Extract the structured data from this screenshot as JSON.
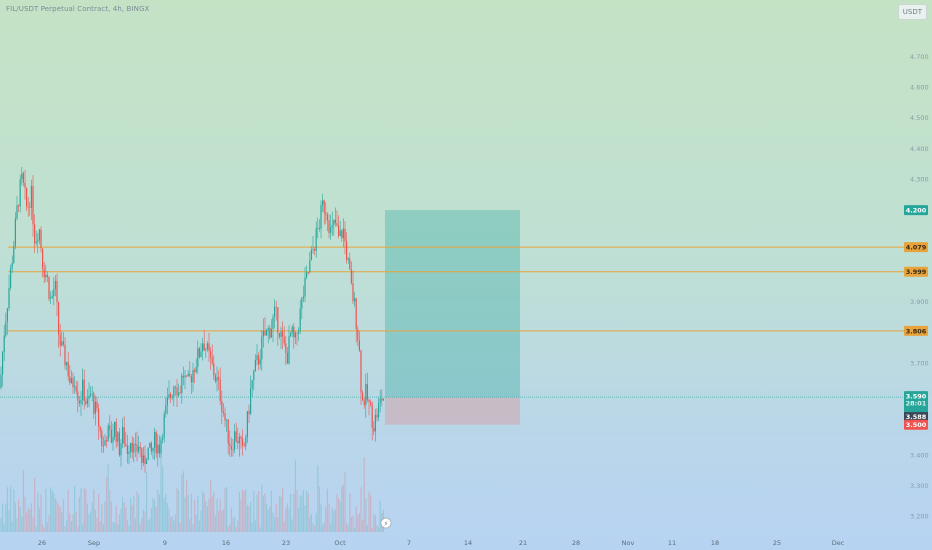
{
  "header": {
    "title": "FIL/USDT Perpetual Contract, 4h, BINGX",
    "currency": "USDT"
  },
  "colors": {
    "up": "#26a69a",
    "down": "#ef5350",
    "level": "#e8a33d",
    "profit": "#26a69a",
    "loss": "#e57373"
  },
  "chart_data": {
    "type": "candlestick",
    "y_axis": {
      "min": 3.15,
      "max": 4.82,
      "ticks": [
        "4.700",
        "4.600",
        "4.500",
        "4.400",
        "4.300",
        "4.200",
        "4.079",
        "3.999",
        "3.900",
        "3.806",
        "3.700",
        "3.590",
        "3.588",
        "3.500",
        "3.400",
        "3.300",
        "3.200"
      ]
    },
    "x_axis": {
      "labels": [
        "26",
        "Sep",
        "9",
        "16",
        "23",
        "Oct",
        "7",
        "14",
        "21",
        "28",
        "Nov",
        "11",
        "18",
        "25",
        "Dec"
      ]
    },
    "price_levels": [
      {
        "label": "4.079",
        "value": 4.079
      },
      {
        "label": "3.999",
        "value": 3.999
      },
      {
        "label": "3.806",
        "value": 3.806
      }
    ],
    "position": {
      "type": "long",
      "entry": 3.59,
      "target": 4.2,
      "stop": 3.5,
      "entry_label": "3.590",
      "countdown": "28:01",
      "current_label": "3.588",
      "target_label": "4.200",
      "stop_label": "3.500"
    },
    "close_path": [
      [
        0,
        3.62
      ],
      [
        4,
        3.8
      ],
      [
        9,
        3.95
      ],
      [
        14,
        4.1
      ],
      [
        18,
        4.23
      ],
      [
        22,
        4.3
      ],
      [
        27,
        4.2
      ],
      [
        31,
        4.26
      ],
      [
        35,
        4.1
      ],
      [
        39,
        4.15
      ],
      [
        43,
        4.02
      ],
      [
        47,
        3.98
      ],
      [
        51,
        3.9
      ],
      [
        55,
        3.96
      ],
      [
        59,
        3.78
      ],
      [
        63,
        3.73
      ],
      [
        67,
        3.7
      ],
      [
        71,
        3.62
      ],
      [
        75,
        3.66
      ],
      [
        79,
        3.58
      ],
      [
        83,
        3.62
      ],
      [
        87,
        3.56
      ],
      [
        91,
        3.6
      ],
      [
        95,
        3.55
      ],
      [
        99,
        3.5
      ],
      [
        103,
        3.42
      ],
      [
        107,
        3.48
      ],
      [
        111,
        3.45
      ],
      [
        115,
        3.5
      ],
      [
        119,
        3.42
      ],
      [
        123,
        3.47
      ],
      [
        127,
        3.42
      ],
      [
        131,
        3.46
      ],
      [
        135,
        3.4
      ],
      [
        139,
        3.44
      ],
      [
        143,
        3.36
      ],
      [
        147,
        3.42
      ],
      [
        151,
        3.4
      ],
      [
        155,
        3.45
      ],
      [
        159,
        3.42
      ],
      [
        163,
        3.5
      ],
      [
        167,
        3.56
      ],
      [
        171,
        3.6
      ],
      [
        175,
        3.65
      ],
      [
        179,
        3.6
      ],
      [
        183,
        3.67
      ],
      [
        187,
        3.62
      ],
      [
        191,
        3.66
      ],
      [
        195,
        3.7
      ],
      [
        199,
        3.73
      ],
      [
        203,
        3.78
      ],
      [
        207,
        3.74
      ],
      [
        211,
        3.7
      ],
      [
        215,
        3.66
      ],
      [
        219,
        3.62
      ],
      [
        223,
        3.55
      ],
      [
        227,
        3.48
      ],
      [
        231,
        3.43
      ],
      [
        235,
        3.47
      ],
      [
        239,
        3.45
      ],
      [
        243,
        3.4
      ],
      [
        247,
        3.5
      ],
      [
        251,
        3.62
      ],
      [
        255,
        3.68
      ],
      [
        259,
        3.72
      ],
      [
        263,
        3.78
      ],
      [
        267,
        3.8
      ],
      [
        271,
        3.82
      ],
      [
        275,
        3.86
      ],
      [
        279,
        3.82
      ],
      [
        283,
        3.76
      ],
      [
        287,
        3.72
      ],
      [
        291,
        3.8
      ],
      [
        295,
        3.76
      ],
      [
        299,
        3.84
      ],
      [
        303,
        3.92
      ],
      [
        307,
        3.98
      ],
      [
        311,
        4.04
      ],
      [
        315,
        4.1
      ],
      [
        319,
        4.15
      ],
      [
        323,
        4.22
      ],
      [
        327,
        4.2
      ],
      [
        331,
        4.12
      ],
      [
        335,
        4.16
      ],
      [
        339,
        4.1
      ],
      [
        343,
        4.14
      ],
      [
        347,
        4.05
      ],
      [
        351,
        3.95
      ],
      [
        355,
        3.88
      ],
      [
        359,
        3.76
      ],
      [
        362,
        3.57
      ],
      [
        366,
        3.6
      ],
      [
        370,
        3.55
      ],
      [
        374,
        3.5
      ],
      [
        378,
        3.55
      ],
      [
        382,
        3.59
      ],
      [
        385,
        3.588
      ]
    ],
    "volume": "bars along bottom of price pane, colored by candle direction"
  }
}
